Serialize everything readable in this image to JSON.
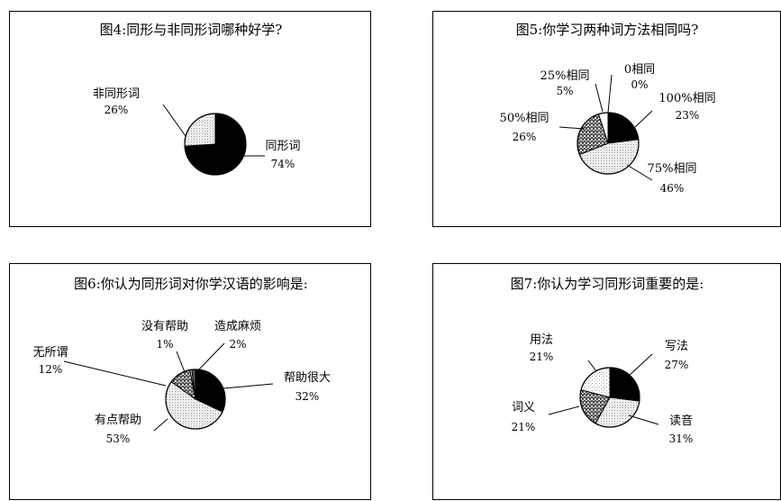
{
  "chart_data": [
    {
      "type": "pie",
      "title": "图4:同形与非同形词哪种好学?",
      "slices": [
        {
          "label": "同形词",
          "value": 74,
          "value_label": "74%",
          "fill": "#000000"
        },
        {
          "label": "非同形词",
          "value": 26,
          "value_label": "26%",
          "fill": "dots"
        }
      ]
    },
    {
      "type": "pie",
      "title": "图5:你学习两种词方法相同吗?",
      "slices": [
        {
          "label": "0相同",
          "value": 0,
          "value_label": "0%",
          "fill": "#ffffff"
        },
        {
          "label": "100%相同",
          "value": 23,
          "value_label": "23%",
          "fill": "#000000"
        },
        {
          "label": "75%相同",
          "value": 46,
          "value_label": "46%",
          "fill": "dots"
        },
        {
          "label": "50%相同",
          "value": 26,
          "value_label": "26%",
          "fill": "crosshatch"
        },
        {
          "label": "25%相同",
          "value": 5,
          "value_label": "5%",
          "fill": "#ffffff"
        }
      ]
    },
    {
      "type": "pie",
      "title": "图6:你认为同形词对你学汉语的影响是:",
      "slices": [
        {
          "label": "帮助很大",
          "value": 32,
          "value_label": "32%",
          "fill": "#000000"
        },
        {
          "label": "有点帮助",
          "value": 53,
          "value_label": "53%",
          "fill": "dots"
        },
        {
          "label": "无所谓",
          "value": 12,
          "value_label": "12%",
          "fill": "crosshatch"
        },
        {
          "label": "没有帮助",
          "value": 1,
          "value_label": "1%",
          "fill": "#ffffff"
        },
        {
          "label": "造成麻烦",
          "value": 2,
          "value_label": "2%",
          "fill": "#555555"
        }
      ]
    },
    {
      "type": "pie",
      "title": "图7:你认为学习同形词重要的是:",
      "slices": [
        {
          "label": "写法",
          "value": 27,
          "value_label": "27%",
          "fill": "#000000"
        },
        {
          "label": "读音",
          "value": 31,
          "value_label": "31%",
          "fill": "dots"
        },
        {
          "label": "词义",
          "value": 21,
          "value_label": "21%",
          "fill": "crosshatch"
        },
        {
          "label": "用法",
          "value": 21,
          "value_label": "21%",
          "fill": "lightdots"
        }
      ]
    }
  ]
}
